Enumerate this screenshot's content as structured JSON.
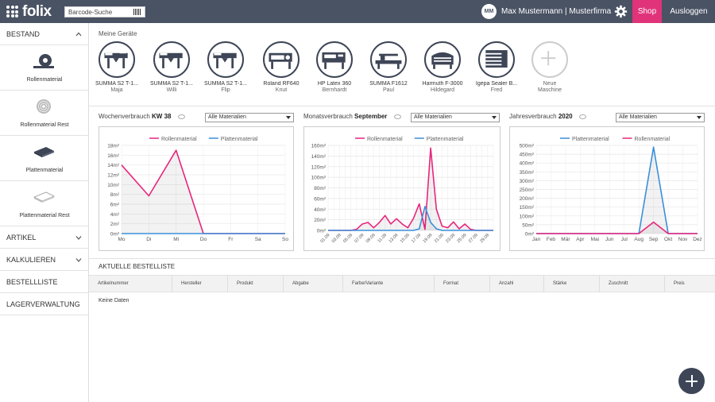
{
  "app": {
    "logo_text": "folix"
  },
  "topbar": {
    "barcode_placeholder": "Barcode-Suche",
    "avatar_initials": "MM",
    "user_name": "Max Mustermann | Musterfirma",
    "shop_label": "Shop",
    "logout_label": "Ausloggen"
  },
  "sidebar": {
    "bestand_label": "BESTAND",
    "stock_items": [
      {
        "label": "Rollenmaterial",
        "icon": "roll-icon"
      },
      {
        "label": "Rollenmaterial Rest",
        "icon": "roll-rest-icon"
      },
      {
        "label": "Plattenmaterial",
        "icon": "plate-icon"
      },
      {
        "label": "Plattenmaterial Rest",
        "icon": "plate-rest-icon"
      }
    ],
    "menu": [
      "ARTIKEL",
      "KALKULIEREN",
      "BESTELLLISTE",
      "LAGERVERWALTUNG"
    ]
  },
  "devices": {
    "title": "Meine Geräte",
    "items": [
      {
        "name": "SUMMA S2 T-1...",
        "nick": "Maja"
      },
      {
        "name": "SUMMA S2 T-1...",
        "nick": "Willi"
      },
      {
        "name": "SUMMA S2 T-1...",
        "nick": "Flip"
      },
      {
        "name": "Roland RF640",
        "nick": "Knut"
      },
      {
        "name": "HP Latex 360",
        "nick": "Bernhardt"
      },
      {
        "name": "SUMMA F1612",
        "nick": "Paul"
      },
      {
        "name": "Harmuth F-3000",
        "nick": "Hildegard"
      },
      {
        "name": "Igepa Sealer B...",
        "nick": "Fred"
      }
    ],
    "new_label_1": "Neue",
    "new_label_2": "Maschine"
  },
  "charts": {
    "weekly": {
      "label": "Wochenverbrauch",
      "period": "KW 38",
      "filter": "Alle Materialien"
    },
    "monthly": {
      "label": "Monatsverbrauch",
      "period": "September",
      "filter": "Alle Materialien"
    },
    "yearly": {
      "label": "Jahresverbrauch",
      "period": "2020",
      "filter": "Alle Materialien"
    }
  },
  "colors": {
    "rollen": "#e8257d",
    "platten": "#3a8fd9"
  },
  "chart_data": [
    {
      "type": "line",
      "categories": [
        "Mo",
        "Di",
        "Mi",
        "Do",
        "Fr",
        "Sa",
        "So"
      ],
      "ylabels": [
        "0m²",
        "2m²",
        "4m²",
        "6m²",
        "8m²",
        "10m²",
        "12m²",
        "14m²",
        "16m²",
        "18m²"
      ],
      "ylim": [
        0,
        18
      ],
      "legend_position": "top",
      "series": [
        {
          "name": "Rollenmaterial",
          "values": [
            14,
            7.7,
            17,
            0,
            0,
            0,
            0
          ]
        },
        {
          "name": "Plattenmaterial",
          "values": [
            0,
            0,
            0,
            0,
            0,
            0,
            0
          ]
        }
      ]
    },
    {
      "type": "line",
      "categories": [
        "01.09",
        "02.09",
        "03.09",
        "04.09",
        "05.09",
        "06.09",
        "07.09",
        "08.09",
        "09.09",
        "10.09",
        "11.09",
        "12.09",
        "13.09",
        "14.09",
        "15.09",
        "16.09",
        "17.09",
        "18.09",
        "19.09",
        "20.09",
        "21.09",
        "22.09",
        "23.09",
        "24.09",
        "25.09",
        "26.09",
        "27.09",
        "28.09",
        "29.09",
        "30.09"
      ],
      "tick_labels": [
        "01.09",
        "03.09",
        "05.09",
        "07.09",
        "09.09",
        "11.09",
        "13.09",
        "15.09",
        "17.09",
        "19.09",
        "21.09",
        "23.09",
        "25.09",
        "27.09",
        "29.09"
      ],
      "ylabels": [
        "0m²",
        "20m²",
        "40m²",
        "60m²",
        "80m²",
        "100m²",
        "120m²",
        "140m²",
        "160m²"
      ],
      "ylim": [
        0,
        160
      ],
      "legend_position": "top",
      "series": [
        {
          "name": "Rollenmaterial",
          "values": [
            0,
            0,
            0,
            0,
            0,
            2,
            12,
            15,
            5,
            15,
            28,
            12,
            22,
            12,
            5,
            23,
            50,
            2,
            155,
            40,
            8,
            5,
            16,
            3,
            12,
            2,
            0,
            0,
            0,
            0
          ]
        },
        {
          "name": "Plattenmaterial",
          "values": [
            0,
            0,
            0,
            0,
            0,
            0,
            0,
            0,
            0,
            0,
            0,
            0,
            0,
            0,
            0,
            0,
            3,
            45,
            15,
            3,
            0,
            0,
            0,
            0,
            0,
            0,
            0,
            0,
            0,
            0
          ]
        }
      ]
    },
    {
      "type": "line",
      "categories": [
        "Jan",
        "Feb",
        "Mär",
        "Apr",
        "Mai",
        "Jun",
        "Jul",
        "Aug",
        "Sep",
        "Okt",
        "Nov",
        "Dez"
      ],
      "ylabels": [
        "0m²",
        "50m²",
        "100m²",
        "150m²",
        "200m²",
        "250m²",
        "300m²",
        "350m²",
        "400m²",
        "450m²",
        "500m²"
      ],
      "ylim": [
        0,
        500
      ],
      "legend_position": "top",
      "series": [
        {
          "name": "Plattenmaterial",
          "values": [
            0,
            0,
            0,
            0,
            0,
            0,
            0,
            0,
            490,
            0,
            0,
            0
          ]
        },
        {
          "name": "Rollenmaterial",
          "values": [
            0,
            0,
            0,
            0,
            0,
            0,
            0,
            0,
            65,
            0,
            0,
            0
          ]
        }
      ]
    }
  ],
  "orders": {
    "title": "AKTUELLE BESTELLISTE",
    "columns": [
      "Artikelnummer",
      "Hersteller",
      "Produkt",
      "Abgabe",
      "Farbe/Variante",
      "Format",
      "Anzahl",
      "Stärke",
      "Zuschnitt",
      "Preis"
    ],
    "empty_text": "Keine Daten"
  }
}
